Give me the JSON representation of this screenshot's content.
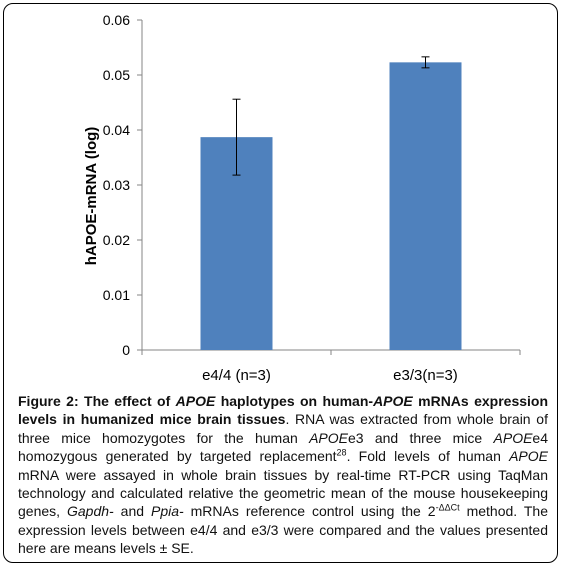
{
  "chart_data": {
    "type": "bar",
    "categories": [
      "e4/4 (n=3)",
      "e3/3(n=3)"
    ],
    "values": [
      0.0387,
      0.0523
    ],
    "errors": [
      0.0069,
      0.001
    ],
    "ylabel": "hAPOE-mRNA (log)",
    "ylim": [
      0,
      0.06
    ],
    "yticks": [
      "0",
      "0.01",
      "0.02",
      "0.03",
      "0.04",
      "0.05",
      "0.06"
    ],
    "bar_color": "#4f81bd",
    "grid": false
  },
  "caption": {
    "figure_label": "Figure 2:",
    "title_1": "The effect of",
    "title_apoe_1": "APOE",
    "title_2": "haplotypes on human-",
    "title_apoe_2": "APOE",
    "title_3": "mRNAs expression levels in humanized mice brain tissues",
    "t1": ". RNA was extracted from whole brain of three mice homozygotes for the human ",
    "g1": "APOE",
    "t2": "e3 and three mice ",
    "g2": "APOE",
    "t3": "e4 homozygous generated by targeted replacement",
    "ref": "28",
    "t4": ". Fold levels of human ",
    "g3": "APOE",
    "t5": " mRNA were assayed in whole brain tissues by real-time RT-PCR using TaqMan technology and calculated relative the geometric mean of the mouse housekeeping genes, ",
    "g4": "Gapdh-",
    "t6": " and ",
    "g5": "Ppia-",
    "t7": " mRNAs reference control using the 2",
    "sup2": "-ΔΔCt",
    "t8": " method. The expression levels between e4/4 and e3/3 were compared and the values presented here are means levels ± SE."
  }
}
